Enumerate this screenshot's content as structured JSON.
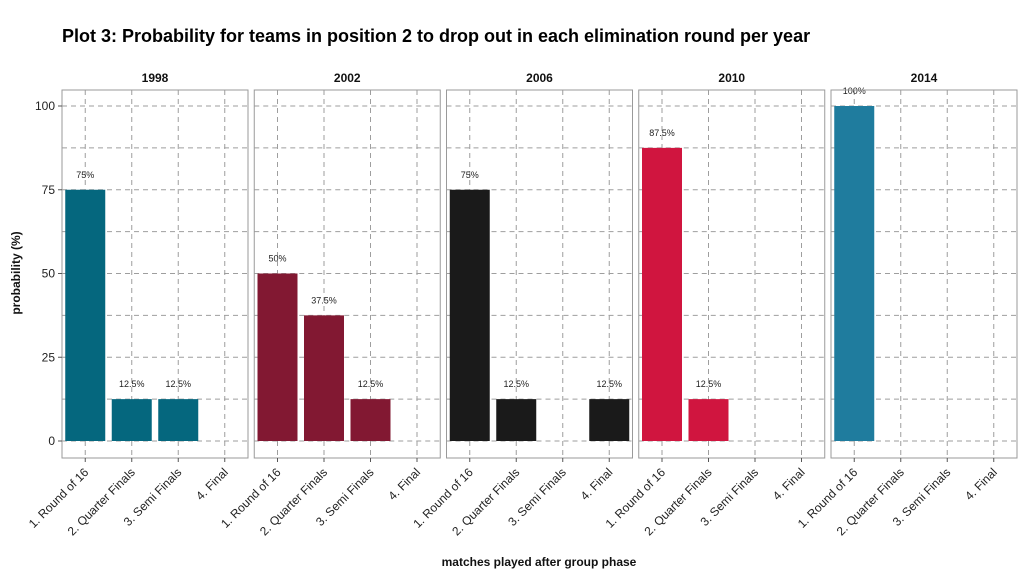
{
  "chart_data": {
    "type": "bar",
    "title": "Plot 3: Probability for teams in position 2 to drop out in each elimination round per year",
    "xlabel": "matches played after group phase",
    "ylabel": "probability (%)",
    "ylim": [
      0,
      100
    ],
    "yticks": [
      0,
      25,
      50,
      75,
      100
    ],
    "grid": true,
    "legend": "none",
    "categories": [
      "1. Round of 16",
      "2. Quarter Finals",
      "3. Semi Finals",
      "4. Final"
    ],
    "panels": [
      {
        "name": "1998",
        "color": "#05677e",
        "values": [
          75,
          12.5,
          12.5,
          null
        ],
        "labels": [
          "75%",
          "12.5%",
          "12.5%",
          ""
        ]
      },
      {
        "name": "2002",
        "color": "#821832",
        "values": [
          50,
          37.5,
          12.5,
          null
        ],
        "labels": [
          "50%",
          "37.5%",
          "12.5%",
          ""
        ]
      },
      {
        "name": "2006",
        "color": "#1a1a1a",
        "values": [
          75,
          12.5,
          null,
          12.5
        ],
        "labels": [
          "75%",
          "12.5%",
          "",
          "12.5%"
        ]
      },
      {
        "name": "2010",
        "color": "#d0153f",
        "values": [
          87.5,
          12.5,
          null,
          null
        ],
        "labels": [
          "87.5%",
          "12.5%",
          "",
          ""
        ]
      },
      {
        "name": "2014",
        "color": "#1f7c9e",
        "values": [
          100,
          null,
          null,
          null
        ],
        "labels": [
          "100%",
          "",
          "",
          ""
        ]
      }
    ]
  }
}
